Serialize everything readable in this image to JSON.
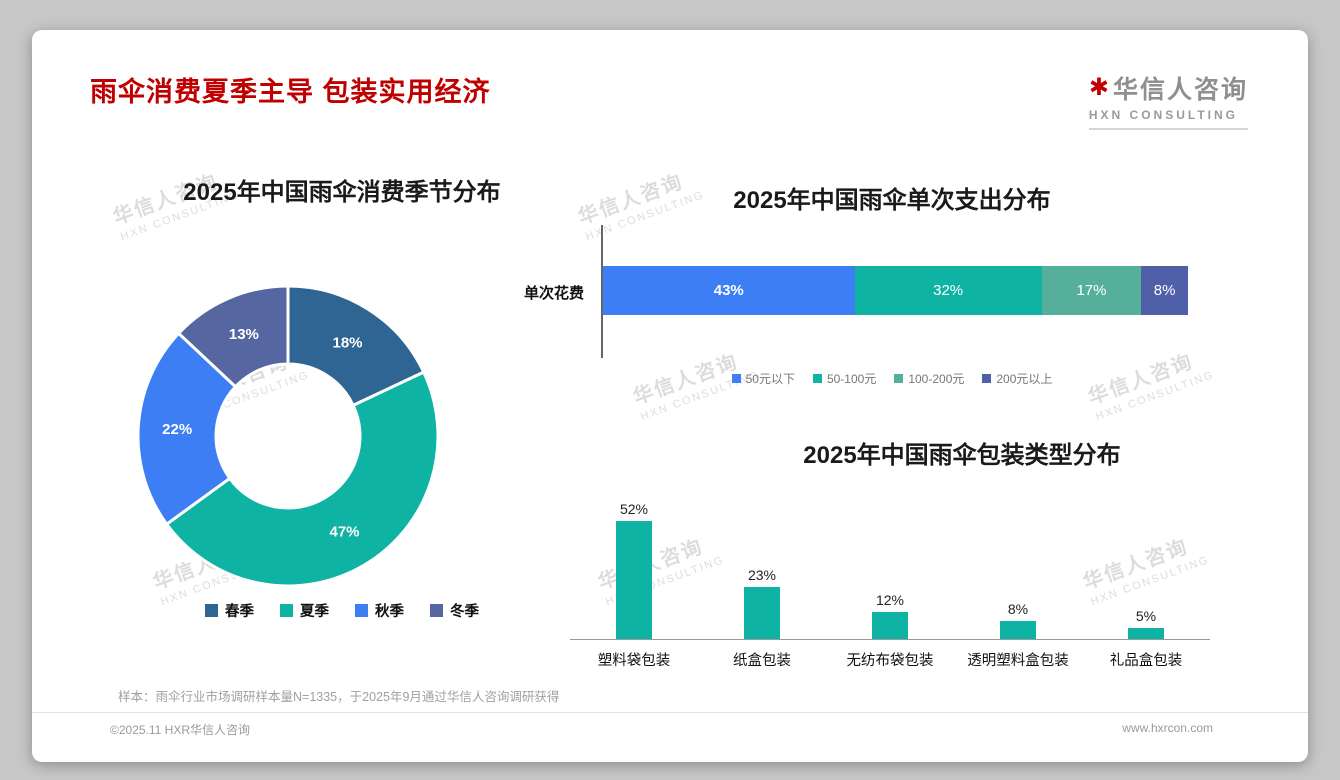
{
  "page": {
    "title": "雨伞消费夏季主导 包装实用经济",
    "footnote": "样本：雨伞行业市场调研样本量N=1335，于2025年9月通过华信人咨询调研获得",
    "footer_left": "©2025.11 HXR华信人咨询",
    "footer_right": "www.hxrcon.com"
  },
  "logo": {
    "name": "华信人咨询",
    "subtitle": "HXN CONSULTING"
  },
  "watermark": {
    "line1": "华信人咨询",
    "line2": "HXN CONSULTING"
  },
  "colors": {
    "title_red": "#c00000",
    "teal": "#0fb3a3",
    "blue": "#3d7ef5",
    "steel_blue": "#2f6593",
    "slate_blue": "#5566a0",
    "green_teal": "#55af9b"
  },
  "chart_data": [
    {
      "type": "pie",
      "donut": true,
      "title": "2025年中国雨伞消费季节分布",
      "categories": [
        "春季",
        "夏季",
        "秋季",
        "冬季"
      ],
      "values": [
        18,
        47,
        22,
        13
      ],
      "value_labels": [
        "18%",
        "47%",
        "22%",
        "13%"
      ],
      "colors": [
        "#2f6593",
        "#0fb3a3",
        "#3d7ef5",
        "#5566a0"
      ],
      "start_angle_deg": 0,
      "direction": "clockwise",
      "legend_position": "bottom"
    },
    {
      "type": "bar-horizontal-stacked",
      "title": "2025年中国雨伞单次支出分布",
      "row_label": "单次花费",
      "xlim": [
        0,
        100
      ],
      "segments": [
        {
          "label": "50元以下",
          "value": 43,
          "value_label": "43%",
          "color": "#3d7ef5"
        },
        {
          "label": "50-100元",
          "value": 32,
          "value_label": "32%",
          "color": "#0fb3a3"
        },
        {
          "label": "100-200元",
          "value": 17,
          "value_label": "17%",
          "color": "#55af9b"
        },
        {
          "label": "200元以上",
          "value": 8,
          "value_label": "8%",
          "color": "#4f5fa8"
        }
      ],
      "legend_position": "bottom"
    },
    {
      "type": "bar",
      "title": "2025年中国雨伞包装类型分布",
      "categories": [
        "塑料袋包装",
        "纸盒包装",
        "无纺布袋包装",
        "透明塑料盒包装",
        "礼品盒包装"
      ],
      "values": [
        52,
        23,
        12,
        8,
        5
      ],
      "value_labels": [
        "52%",
        "23%",
        "12%",
        "8%",
        "5%"
      ],
      "bar_color": "#0fb3a3",
      "ylim": [
        0,
        60
      ],
      "grid": false
    }
  ]
}
